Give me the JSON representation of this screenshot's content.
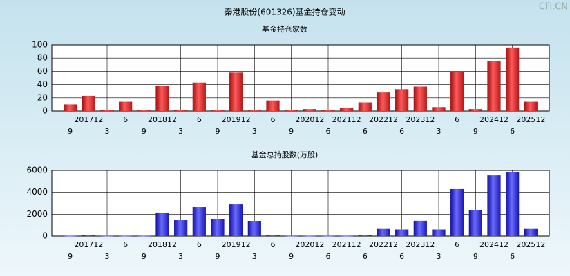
{
  "title": "秦港股份(601326)基金持仓变动",
  "watermark": "CFi.CN",
  "chart_data": [
    {
      "type": "bar",
      "title": "基金持仓家数",
      "categories": [
        "9",
        "201712",
        "3",
        "6",
        "9",
        "201812",
        "3",
        "6",
        "9",
        "201912",
        "3",
        "6",
        "9",
        "202012",
        "6",
        "202112",
        "6",
        "202212",
        "6",
        "202312",
        "3",
        "6",
        "9",
        "202412",
        "6",
        "202512"
      ],
      "values": [
        10,
        23,
        2,
        14,
        1,
        38,
        2,
        43,
        1,
        58,
        1,
        16,
        1,
        3,
        2,
        5,
        13,
        28,
        33,
        37,
        6,
        59,
        3,
        75,
        96,
        14
      ],
      "color": "#e02a2a",
      "ylim": [
        0,
        100
      ],
      "yticks": [
        0,
        20,
        40,
        60,
        80,
        100
      ],
      "grid": true
    },
    {
      "type": "bar",
      "title": "基金总持股数(万股)",
      "categories": [
        "9",
        "201712",
        "3",
        "6",
        "9",
        "201812",
        "3",
        "6",
        "9",
        "201912",
        "3",
        "6",
        "9",
        "202012",
        "6",
        "202112",
        "6",
        "202212",
        "6",
        "202312",
        "3",
        "6",
        "9",
        "202412",
        "6",
        "202512"
      ],
      "values": [
        20,
        80,
        20,
        20,
        20,
        2150,
        1450,
        2650,
        1550,
        2900,
        1380,
        80,
        20,
        20,
        20,
        20,
        80,
        650,
        600,
        1400,
        600,
        4300,
        2400,
        5550,
        5850,
        650
      ],
      "color": "#2a2ae0",
      "ylim": [
        0,
        6000
      ],
      "yticks": [
        0,
        2000,
        4000,
        6000
      ],
      "grid": true
    }
  ]
}
